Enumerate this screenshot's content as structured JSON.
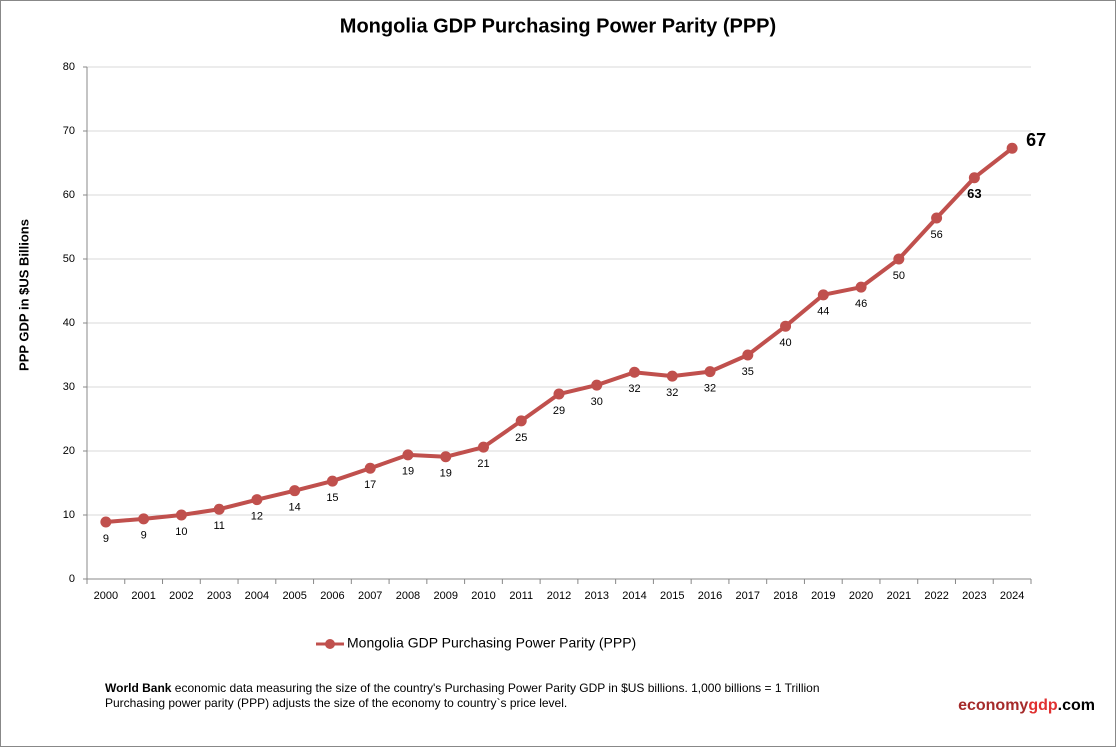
{
  "chart_data": {
    "type": "line",
    "title": "Mongolia GDP Purchasing Power Parity (PPP)",
    "y_label": "PPP GDP in $US Billions",
    "categories": [
      "2000",
      "2001",
      "2002",
      "2003",
      "2004",
      "2005",
      "2006",
      "2007",
      "2008",
      "2009",
      "2010",
      "2011",
      "2012",
      "2013",
      "2014",
      "2015",
      "2016",
      "2017",
      "2018",
      "2019",
      "2020",
      "2021",
      "2022",
      "2023",
      "2024"
    ],
    "series": [
      {
        "name": "Mongolia GDP Purchasing Power Parity (PPP)",
        "color": "#c0504d",
        "values": [
          8.9,
          9.4,
          10.0,
          10.9,
          12.4,
          13.8,
          15.3,
          17.3,
          19.4,
          19.1,
          20.6,
          24.7,
          28.9,
          30.3,
          32.3,
          31.7,
          32.4,
          35.0,
          39.5,
          44.4,
          45.6,
          50.0,
          56.4,
          62.7,
          67.3
        ],
        "value_labels": [
          "9",
          "9",
          "10",
          "11",
          "12",
          "14",
          "15",
          "17",
          "19",
          "19",
          "21",
          "25",
          "29",
          "30",
          "32",
          "32",
          "32",
          "35",
          "40",
          "44",
          "46",
          "50",
          "56",
          "63",
          "67"
        ]
      }
    ],
    "ylim": [
      0,
      80
    ],
    "yticks": [
      0,
      10,
      20,
      30,
      40,
      50,
      60,
      70,
      80
    ],
    "grid": true,
    "footnote": {
      "source": "World Bank",
      "line1": "economic data  measuring the size of the country's Purchasing Power Parity GDP in $US billions. 1,000 billions = 1 Trillion",
      "line2": "Purchasing power parity (PPP) adjusts the size of the economy to country`s price level."
    },
    "brand": [
      "economy",
      "gdp",
      ".com"
    ]
  }
}
